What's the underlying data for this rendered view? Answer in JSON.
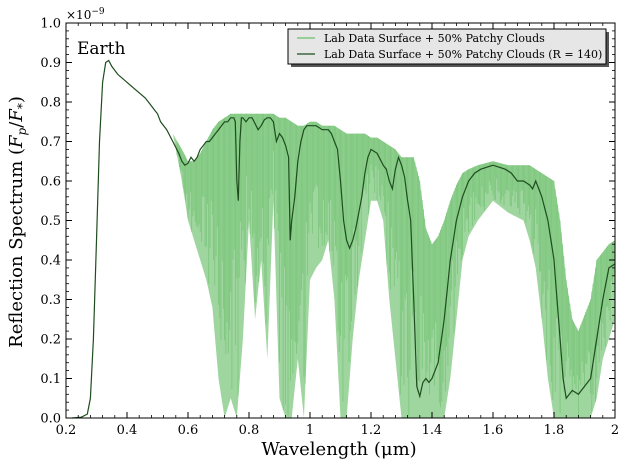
{
  "chart_data": {
    "type": "line",
    "annotation": "Earth",
    "xlabel": "Wavelength (μm)",
    "ylabel": "Reflection Spectrum (F_p / F_*)",
    "ylabel_parts": {
      "main": "Reflection Spectrum (",
      "f": "F",
      "p": "p",
      "slash": "/",
      "star": "*",
      "close": ")"
    },
    "y_multiplier": "×10⁻⁹",
    "y_multiplier_parts": {
      "base": "×10",
      "exp": "−9"
    },
    "xlim": [
      0.2,
      2.0
    ],
    "ylim": [
      0.0,
      1.0
    ],
    "xticks": [
      0.2,
      0.4,
      0.6,
      0.8,
      1.0,
      1.2,
      1.4,
      1.6,
      1.8,
      2.0
    ],
    "xtick_labels": [
      "0.2",
      "0.4",
      "0.6",
      "0.8",
      "1",
      "1.2",
      "1.4",
      "1.6",
      "1.8",
      "2"
    ],
    "yticks": [
      0.0,
      0.1,
      0.2,
      0.3,
      0.4,
      0.5,
      0.6,
      0.7,
      0.8,
      0.9,
      1.0
    ],
    "ytick_labels": [
      "0.0",
      "0.1",
      "0.2",
      "0.3",
      "0.4",
      "0.5",
      "0.6",
      "0.7",
      "0.8",
      "0.9",
      "1.0"
    ],
    "grid": false,
    "legend_position": "top-right",
    "series": [
      {
        "name": "Lab Data Surface + 50% Patchy Clouds",
        "color": "#6bbf6b",
        "style": "high-resolution, rapidly varying band (shown as min/max envelope)",
        "envelope_x": [
          0.25,
          0.3,
          0.33,
          0.35,
          0.4,
          0.45,
          0.5,
          0.55,
          0.58,
          0.6,
          0.62,
          0.64,
          0.66,
          0.68,
          0.7,
          0.72,
          0.74,
          0.76,
          0.78,
          0.8,
          0.82,
          0.84,
          0.86,
          0.88,
          0.9,
          0.92,
          0.94,
          0.96,
          0.98,
          1.0,
          1.02,
          1.04,
          1.06,
          1.08,
          1.1,
          1.12,
          1.14,
          1.16,
          1.18,
          1.2,
          1.22,
          1.24,
          1.26,
          1.28,
          1.3,
          1.32,
          1.34,
          1.36,
          1.38,
          1.4,
          1.42,
          1.44,
          1.46,
          1.48,
          1.5,
          1.52,
          1.55,
          1.6,
          1.65,
          1.7,
          1.72,
          1.74,
          1.76,
          1.78,
          1.8,
          1.82,
          1.84,
          1.86,
          1.88,
          1.9,
          1.92,
          1.94,
          1.96,
          1.98,
          2.0
        ],
        "envelope_max": [
          0.0,
          0.55,
          0.88,
          0.91,
          0.87,
          0.84,
          0.8,
          0.72,
          0.68,
          0.65,
          0.65,
          0.67,
          0.7,
          0.73,
          0.75,
          0.76,
          0.77,
          0.77,
          0.77,
          0.77,
          0.77,
          0.77,
          0.77,
          0.77,
          0.76,
          0.76,
          0.75,
          0.74,
          0.74,
          0.75,
          0.75,
          0.74,
          0.74,
          0.74,
          0.73,
          0.72,
          0.72,
          0.72,
          0.72,
          0.71,
          0.71,
          0.7,
          0.69,
          0.68,
          0.66,
          0.66,
          0.66,
          0.6,
          0.48,
          0.44,
          0.46,
          0.5,
          0.55,
          0.59,
          0.62,
          0.63,
          0.64,
          0.65,
          0.64,
          0.64,
          0.64,
          0.63,
          0.62,
          0.61,
          0.6,
          0.5,
          0.35,
          0.25,
          0.22,
          0.26,
          0.3,
          0.4,
          0.42,
          0.44,
          0.45
        ],
        "envelope_min": [
          0.0,
          0.55,
          0.88,
          0.91,
          0.87,
          0.84,
          0.8,
          0.72,
          0.6,
          0.5,
          0.45,
          0.4,
          0.35,
          0.28,
          0.1,
          0.0,
          0.05,
          0.0,
          0.2,
          0.5,
          0.25,
          0.4,
          0.15,
          0.55,
          0.05,
          0.0,
          0.0,
          0.15,
          0.0,
          0.35,
          0.38,
          0.4,
          0.45,
          0.3,
          0.0,
          0.0,
          0.2,
          0.35,
          0.45,
          0.55,
          0.55,
          0.5,
          0.3,
          0.15,
          0.0,
          0.0,
          0.0,
          0.0,
          0.0,
          0.0,
          0.0,
          0.0,
          0.1,
          0.25,
          0.4,
          0.46,
          0.5,
          0.55,
          0.52,
          0.5,
          0.45,
          0.38,
          0.25,
          0.1,
          0.0,
          0.0,
          0.0,
          0.0,
          0.0,
          0.0,
          0.0,
          0.05,
          0.15,
          0.2,
          0.25
        ]
      },
      {
        "name": "Lab Data Surface + 50% Patchy Clouds (R = 140)",
        "color": "#1e4d1e",
        "x": [
          0.22,
          0.25,
          0.27,
          0.28,
          0.29,
          0.3,
          0.31,
          0.32,
          0.33,
          0.34,
          0.35,
          0.37,
          0.4,
          0.43,
          0.46,
          0.48,
          0.49,
          0.5,
          0.51,
          0.53,
          0.55,
          0.57,
          0.58,
          0.59,
          0.6,
          0.61,
          0.62,
          0.63,
          0.64,
          0.65,
          0.66,
          0.67,
          0.68,
          0.69,
          0.7,
          0.71,
          0.72,
          0.73,
          0.74,
          0.75,
          0.755,
          0.76,
          0.765,
          0.77,
          0.775,
          0.78,
          0.79,
          0.8,
          0.81,
          0.82,
          0.83,
          0.84,
          0.85,
          0.86,
          0.87,
          0.88,
          0.89,
          0.9,
          0.91,
          0.92,
          0.93,
          0.935,
          0.94,
          0.95,
          0.96,
          0.97,
          0.98,
          0.99,
          1.0,
          1.02,
          1.04,
          1.06,
          1.07,
          1.08,
          1.09,
          1.1,
          1.11,
          1.12,
          1.13,
          1.14,
          1.15,
          1.16,
          1.17,
          1.18,
          1.19,
          1.2,
          1.22,
          1.24,
          1.25,
          1.26,
          1.27,
          1.28,
          1.29,
          1.3,
          1.31,
          1.32,
          1.33,
          1.34,
          1.35,
          1.36,
          1.37,
          1.38,
          1.39,
          1.4,
          1.42,
          1.44,
          1.46,
          1.48,
          1.5,
          1.52,
          1.54,
          1.56,
          1.58,
          1.6,
          1.62,
          1.64,
          1.66,
          1.68,
          1.7,
          1.72,
          1.73,
          1.74,
          1.75,
          1.76,
          1.78,
          1.8,
          1.81,
          1.82,
          1.83,
          1.84,
          1.85,
          1.86,
          1.88,
          1.9,
          1.92,
          1.94,
          1.96,
          1.98,
          2.0
        ],
        "values": [
          0.0,
          0.002,
          0.01,
          0.05,
          0.2,
          0.45,
          0.7,
          0.85,
          0.9,
          0.905,
          0.89,
          0.87,
          0.85,
          0.83,
          0.81,
          0.79,
          0.78,
          0.77,
          0.75,
          0.73,
          0.7,
          0.67,
          0.65,
          0.64,
          0.645,
          0.66,
          0.65,
          0.66,
          0.68,
          0.69,
          0.7,
          0.7,
          0.71,
          0.72,
          0.73,
          0.74,
          0.75,
          0.75,
          0.76,
          0.76,
          0.75,
          0.6,
          0.55,
          0.7,
          0.76,
          0.76,
          0.75,
          0.76,
          0.76,
          0.745,
          0.73,
          0.74,
          0.755,
          0.76,
          0.76,
          0.75,
          0.7,
          0.72,
          0.71,
          0.69,
          0.66,
          0.45,
          0.5,
          0.56,
          0.65,
          0.7,
          0.73,
          0.74,
          0.74,
          0.74,
          0.73,
          0.73,
          0.72,
          0.7,
          0.68,
          0.6,
          0.5,
          0.45,
          0.43,
          0.45,
          0.48,
          0.52,
          0.56,
          0.62,
          0.66,
          0.68,
          0.67,
          0.64,
          0.63,
          0.6,
          0.58,
          0.63,
          0.66,
          0.64,
          0.61,
          0.55,
          0.5,
          0.3,
          0.08,
          0.055,
          0.09,
          0.1,
          0.09,
          0.1,
          0.14,
          0.25,
          0.4,
          0.5,
          0.56,
          0.6,
          0.62,
          0.63,
          0.635,
          0.64,
          0.635,
          0.63,
          0.62,
          0.6,
          0.6,
          0.59,
          0.58,
          0.6,
          0.58,
          0.56,
          0.5,
          0.4,
          0.3,
          0.2,
          0.1,
          0.05,
          0.06,
          0.07,
          0.06,
          0.08,
          0.1,
          0.2,
          0.3,
          0.38,
          0.39
        ]
      }
    ]
  }
}
